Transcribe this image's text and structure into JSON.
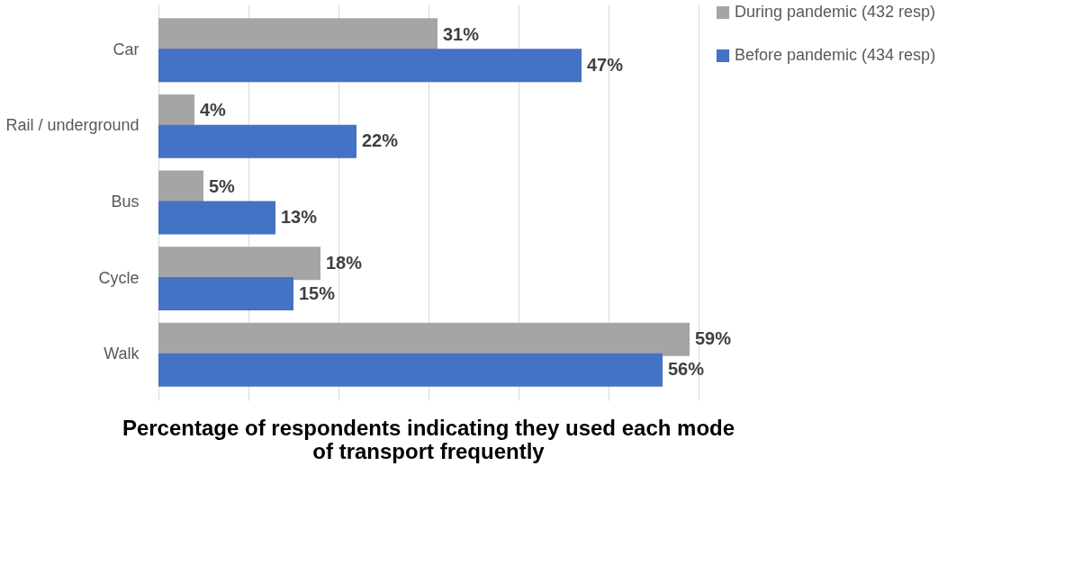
{
  "chart_data": {
    "type": "bar",
    "orientation": "horizontal",
    "title": "Percentage of respondents indicating they used each mode of transport frequently",
    "categories": [
      "Car",
      "Rail / underground",
      "Bus",
      "Cycle",
      "Walk"
    ],
    "series": [
      {
        "name": "During pandemic (432 resp)",
        "color": "#a5a5a5",
        "values": [
          31,
          4,
          5,
          18,
          59
        ],
        "value_labels": [
          "31%",
          "4%",
          "5%",
          "18%",
          "59%"
        ]
      },
      {
        "name": "Before pandemic (434 resp)",
        "color": "#4472c4",
        "values": [
          47,
          22,
          13,
          15,
          56
        ],
        "value_labels": [
          "47%",
          "22%",
          "13%",
          "15%",
          "56%"
        ]
      }
    ],
    "tick_labels": "y",
    "grid": "x",
    "legend": "right"
  }
}
